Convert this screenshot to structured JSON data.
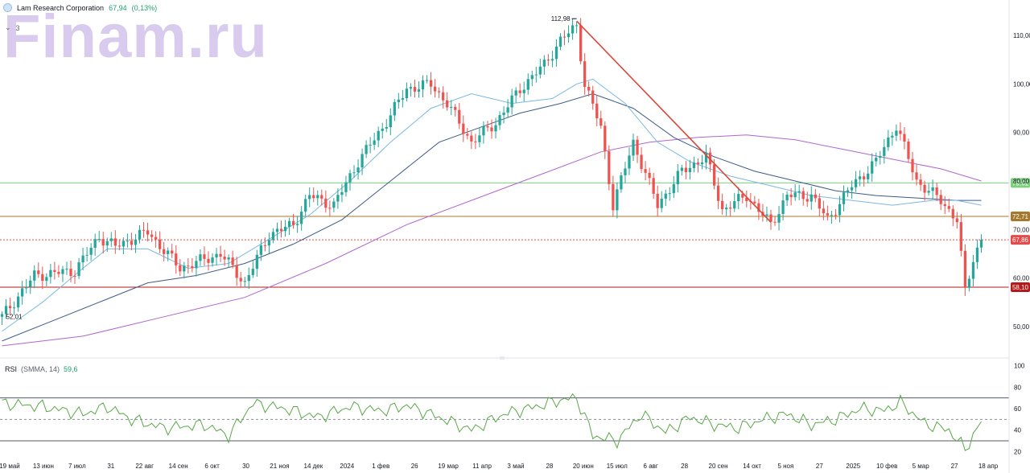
{
  "header": {
    "company": "Lam Research Corporation",
    "price": "67,94",
    "change": "(0,13%)",
    "indicator_count": "3"
  },
  "watermark": "Finam.ru",
  "rsi": {
    "name": "RSI",
    "params": "(SMMA, 14)",
    "value": "59,6"
  },
  "colors": {
    "up": "#26a69a",
    "down": "#ef5350",
    "ma_fast": "#7ab8e0",
    "ma_mid": "#3f5a86",
    "ma_slow": "#b066cc",
    "trend": "#d9463b",
    "level_green": "#7ccf7c",
    "level_brown": "#a5792d",
    "level_red": "#b51a1a",
    "last_price": "#e34a4a",
    "rsi_line": "#5aa64a"
  },
  "chart_data": [
    {
      "type": "candlestick",
      "title": "Lam Research Corporation",
      "ylim": [
        44,
        116
      ],
      "y_ticks": [
        "110,00",
        "100,00",
        "90,00",
        "80,00",
        "70,00",
        "60,00",
        "50,00"
      ],
      "x_ticks": [
        "19 май",
        "13 июн",
        "7 июл",
        "31",
        "22 авг",
        "14 сен",
        "6 окт",
        "30",
        "21 ноя",
        "14 дек",
        "2024",
        "1 фев",
        "26",
        "19 мар",
        "11 апр",
        "3 май",
        "28",
        "20 июн",
        "15 июл",
        "6 авг",
        "28",
        "20 сен",
        "14 окт",
        "5 ноя",
        "27",
        "2025",
        "10 фев",
        "5 мар",
        "27",
        "18 апр"
      ],
      "price_anchors": [
        {
          "x": 0,
          "y": 52.0
        },
        {
          "x": 8,
          "y": 60.5
        },
        {
          "x": 18,
          "y": 61.5
        },
        {
          "x": 24,
          "y": 68.5
        },
        {
          "x": 28,
          "y": 66.5
        },
        {
          "x": 36,
          "y": 69.5
        },
        {
          "x": 44,
          "y": 62.0
        },
        {
          "x": 54,
          "y": 65.0
        },
        {
          "x": 60,
          "y": 59.0
        },
        {
          "x": 66,
          "y": 69.0
        },
        {
          "x": 72,
          "y": 71.0
        },
        {
          "x": 76,
          "y": 77.0
        },
        {
          "x": 82,
          "y": 75.0
        },
        {
          "x": 88,
          "y": 84.0
        },
        {
          "x": 94,
          "y": 91.0
        },
        {
          "x": 100,
          "y": 99.0
        },
        {
          "x": 106,
          "y": 100.0
        },
        {
          "x": 110,
          "y": 96.0
        },
        {
          "x": 116,
          "y": 88.0
        },
        {
          "x": 122,
          "y": 92.0
        },
        {
          "x": 128,
          "y": 99.0
        },
        {
          "x": 134,
          "y": 104.0
        },
        {
          "x": 138,
          "y": 109.0
        },
        {
          "x": 142,
          "y": 112.0
        },
        {
          "x": 144,
          "y": 100.0
        },
        {
          "x": 148,
          "y": 91.0
        },
        {
          "x": 151,
          "y": 75.0
        },
        {
          "x": 156,
          "y": 88.0
        },
        {
          "x": 162,
          "y": 75.0
        },
        {
          "x": 168,
          "y": 82.0
        },
        {
          "x": 174,
          "y": 85.0
        },
        {
          "x": 178,
          "y": 74.0
        },
        {
          "x": 184,
          "y": 77.0
        },
        {
          "x": 190,
          "y": 71.0
        },
        {
          "x": 194,
          "y": 77.0
        },
        {
          "x": 200,
          "y": 77.0
        },
        {
          "x": 204,
          "y": 72.0
        },
        {
          "x": 210,
          "y": 79.0
        },
        {
          "x": 216,
          "y": 84.0
        },
        {
          "x": 221,
          "y": 91.5
        },
        {
          "x": 226,
          "y": 80.0
        },
        {
          "x": 232,
          "y": 76.0
        },
        {
          "x": 236,
          "y": 72.0
        },
        {
          "x": 238,
          "y": 57.0
        },
        {
          "x": 240,
          "y": 64.0
        },
        {
          "x": 242,
          "y": 68.0
        }
      ],
      "ma_fast": [
        [
          0,
          49
        ],
        [
          10,
          55
        ],
        [
          20,
          62
        ],
        [
          26,
          66
        ],
        [
          36,
          66
        ],
        [
          46,
          62
        ],
        [
          56,
          63
        ],
        [
          66,
          68
        ],
        [
          76,
          73
        ],
        [
          86,
          80
        ],
        [
          96,
          88
        ],
        [
          106,
          95
        ],
        [
          116,
          98
        ],
        [
          126,
          96
        ],
        [
          136,
          97
        ],
        [
          142,
          100
        ],
        [
          146,
          101
        ],
        [
          154,
          96
        ],
        [
          162,
          88
        ],
        [
          170,
          84
        ],
        [
          180,
          81
        ],
        [
          190,
          79
        ],
        [
          200,
          77
        ],
        [
          210,
          76
        ],
        [
          220,
          75
        ],
        [
          230,
          76
        ],
        [
          236,
          76
        ],
        [
          242,
          75
        ]
      ],
      "ma_mid": [
        [
          0,
          47
        ],
        [
          12,
          51
        ],
        [
          24,
          55
        ],
        [
          36,
          59
        ],
        [
          48,
          60.5
        ],
        [
          60,
          63
        ],
        [
          72,
          67
        ],
        [
          84,
          72
        ],
        [
          96,
          80
        ],
        [
          108,
          88
        ],
        [
          118,
          91
        ],
        [
          128,
          94
        ],
        [
          138,
          96
        ],
        [
          146,
          98
        ],
        [
          156,
          95
        ],
        [
          166,
          89
        ],
        [
          176,
          85
        ],
        [
          186,
          82
        ],
        [
          196,
          80
        ],
        [
          206,
          78
        ],
        [
          216,
          77
        ],
        [
          226,
          76.5
        ],
        [
          236,
          76
        ],
        [
          242,
          76
        ]
      ],
      "ma_slow": [
        [
          0,
          46
        ],
        [
          20,
          48
        ],
        [
          40,
          52
        ],
        [
          60,
          56
        ],
        [
          80,
          63
        ],
        [
          100,
          71
        ],
        [
          116,
          76
        ],
        [
          132,
          81
        ],
        [
          148,
          86
        ],
        [
          160,
          88
        ],
        [
          172,
          89
        ],
        [
          184,
          89.5
        ],
        [
          196,
          88.5
        ],
        [
          208,
          86.5
        ],
        [
          220,
          84.5
        ],
        [
          232,
          82.5
        ],
        [
          242,
          80
        ]
      ],
      "horizontal_levels": [
        {
          "value": 79.61,
          "label": "79,61",
          "color": "#7ccf7c"
        },
        {
          "value": 72.71,
          "label": "72,71",
          "color": "#a5792d"
        },
        {
          "value": 67.86,
          "label": "67,86",
          "color": "#e34a4a"
        },
        {
          "value": 58.1,
          "label": "58,10",
          "color": "#b51a1a"
        }
      ],
      "trend_line": {
        "from": [
          142,
          112.98
        ],
        "to": [
          190,
          71.5
        ]
      },
      "annotations": [
        {
          "text": "112,98",
          "x": 142,
          "y": 112.98
        },
        {
          "text": "52,01",
          "x": 0,
          "y": 52.01
        }
      ]
    },
    {
      "type": "line",
      "title": "RSI",
      "ylim": [
        15,
        105
      ],
      "y_ticks": [
        "100",
        "80",
        "60",
        "40",
        "20"
      ],
      "bands": [
        30,
        50,
        70
      ],
      "rsi_anchors": [
        {
          "x": 0,
          "y": 65
        },
        {
          "x": 10,
          "y": 62
        },
        {
          "x": 20,
          "y": 55
        },
        {
          "x": 26,
          "y": 62
        },
        {
          "x": 32,
          "y": 50
        },
        {
          "x": 40,
          "y": 42
        },
        {
          "x": 50,
          "y": 45
        },
        {
          "x": 56,
          "y": 35
        },
        {
          "x": 62,
          "y": 65
        },
        {
          "x": 70,
          "y": 60
        },
        {
          "x": 78,
          "y": 52
        },
        {
          "x": 86,
          "y": 62
        },
        {
          "x": 94,
          "y": 58
        },
        {
          "x": 100,
          "y": 63
        },
        {
          "x": 108,
          "y": 52
        },
        {
          "x": 116,
          "y": 40
        },
        {
          "x": 124,
          "y": 55
        },
        {
          "x": 132,
          "y": 62
        },
        {
          "x": 138,
          "y": 68
        },
        {
          "x": 142,
          "y": 70
        },
        {
          "x": 146,
          "y": 35
        },
        {
          "x": 152,
          "y": 30
        },
        {
          "x": 158,
          "y": 55
        },
        {
          "x": 164,
          "y": 38
        },
        {
          "x": 170,
          "y": 52
        },
        {
          "x": 176,
          "y": 45
        },
        {
          "x": 182,
          "y": 42
        },
        {
          "x": 188,
          "y": 50
        },
        {
          "x": 194,
          "y": 55
        },
        {
          "x": 200,
          "y": 45
        },
        {
          "x": 206,
          "y": 50
        },
        {
          "x": 212,
          "y": 60
        },
        {
          "x": 218,
          "y": 58
        },
        {
          "x": 222,
          "y": 66
        },
        {
          "x": 228,
          "y": 46
        },
        {
          "x": 234,
          "y": 40
        },
        {
          "x": 238,
          "y": 22
        },
        {
          "x": 242,
          "y": 48
        }
      ]
    }
  ]
}
